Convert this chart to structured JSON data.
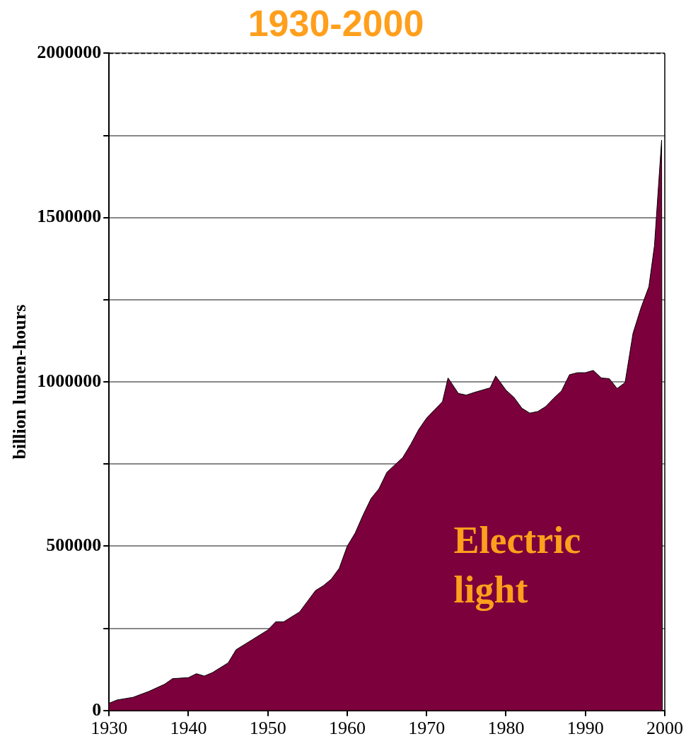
{
  "chart_data": {
    "type": "area",
    "title": "1930-2000",
    "ylabel": "billion lumen-hours",
    "xlim": [
      1930,
      2000
    ],
    "xticks": [
      1930,
      1940,
      1950,
      1960,
      1970,
      1980,
      1990,
      2000
    ],
    "ylim": [
      0,
      2000000
    ],
    "yticks": [
      0,
      {
        "value": 250000,
        "label": null
      },
      500000,
      {
        "value": 750000,
        "label": null
      },
      1000000,
      {
        "value": 1250000,
        "label": null
      },
      1500000,
      {
        "value": 1750000,
        "label": null
      },
      2000000
    ],
    "grid": "y",
    "legend": false,
    "series": [
      {
        "name": "Electric light",
        "color": "#7b003c",
        "x": [
          1930,
          1931,
          1933,
          1935,
          1937,
          1938,
          1940,
          1941,
          1942,
          1943,
          1945,
          1946,
          1948,
          1950,
          1951,
          1952,
          1954,
          1956,
          1957,
          1958,
          1959,
          1960,
          1961,
          1962,
          1963,
          1964,
          1965,
          1967,
          1968,
          1969,
          1970,
          1971,
          1972,
          1972.7,
          1974,
          1975,
          1976,
          1977,
          1978,
          1978.7,
          1980,
          1981,
          1982,
          1983,
          1984,
          1985,
          1986,
          1987,
          1988,
          1989,
          1990,
          1991,
          1992,
          1993,
          1994,
          1995,
          1996,
          1997,
          1998,
          1998.7,
          1999.6,
          1999.7
        ],
        "values": [
          22000,
          32000,
          40000,
          58000,
          80000,
          97000,
          100000,
          112000,
          105000,
          115000,
          145000,
          185000,
          215000,
          245000,
          270000,
          270000,
          300000,
          365000,
          380000,
          400000,
          433000,
          500000,
          540000,
          595000,
          645000,
          675000,
          725000,
          770000,
          810000,
          855000,
          890000,
          915000,
          940000,
          1012000,
          965000,
          960000,
          968000,
          975000,
          982000,
          1018000,
          975000,
          953000,
          920000,
          905000,
          910000,
          925000,
          950000,
          973000,
          1022000,
          1028000,
          1028000,
          1035000,
          1012000,
          1010000,
          980000,
          998000,
          1148000,
          1225000,
          1290000,
          1415000,
          1736000,
          0
        ]
      }
    ]
  }
}
